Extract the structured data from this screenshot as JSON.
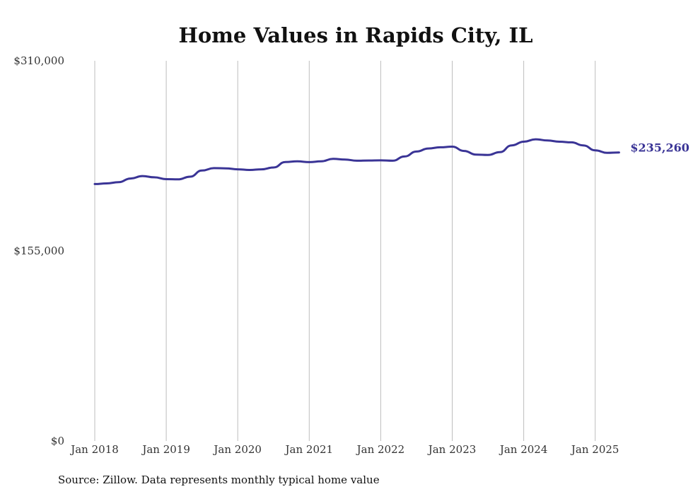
{
  "chart_data": {
    "type": "line",
    "title": "Home Values in Rapids City, IL",
    "xlabel": "",
    "ylabel": "",
    "ylim": [
      0,
      310000
    ],
    "y_ticks": [
      "$0",
      "$155,000",
      "$310,000"
    ],
    "x_ticks": [
      "Jan 2018",
      "Jan 2019",
      "Jan 2020",
      "Jan 2021",
      "Jan 2022",
      "Jan 2023",
      "Jan 2024",
      "Jan 2025"
    ],
    "grid": "vertical",
    "end_label": "$235,260",
    "series": [
      {
        "color": "#3a3496",
        "x": [
          "2018-01",
          "2018-03",
          "2018-05",
          "2018-07",
          "2018-09",
          "2018-11",
          "2019-01",
          "2019-03",
          "2019-05",
          "2019-07",
          "2019-09",
          "2019-11",
          "2020-01",
          "2020-03",
          "2020-05",
          "2020-07",
          "2020-09",
          "2020-11",
          "2021-01",
          "2021-03",
          "2021-05",
          "2021-07",
          "2021-09",
          "2021-11",
          "2022-01",
          "2022-03",
          "2022-05",
          "2022-07",
          "2022-09",
          "2022-11",
          "2023-01",
          "2023-03",
          "2023-05",
          "2023-07",
          "2023-09",
          "2023-11",
          "2024-01",
          "2024-03",
          "2024-05",
          "2024-07",
          "2024-09",
          "2024-11",
          "2025-01",
          "2025-03",
          "2025-05"
        ],
        "values": [
          209500,
          210000,
          211000,
          214000,
          216000,
          215000,
          213500,
          213300,
          215500,
          220500,
          222500,
          222300,
          221500,
          221000,
          221500,
          223000,
          227500,
          228000,
          227400,
          228000,
          230000,
          229500,
          228500,
          228700,
          228800,
          228500,
          232000,
          236000,
          238500,
          239500,
          240000,
          236500,
          233500,
          233200,
          235500,
          241000,
          244000,
          246000,
          245000,
          244000,
          243500,
          241000,
          237000,
          235000,
          235260
        ]
      }
    ]
  },
  "source_note": "Source: Zillow. Data represents monthly typical home value"
}
